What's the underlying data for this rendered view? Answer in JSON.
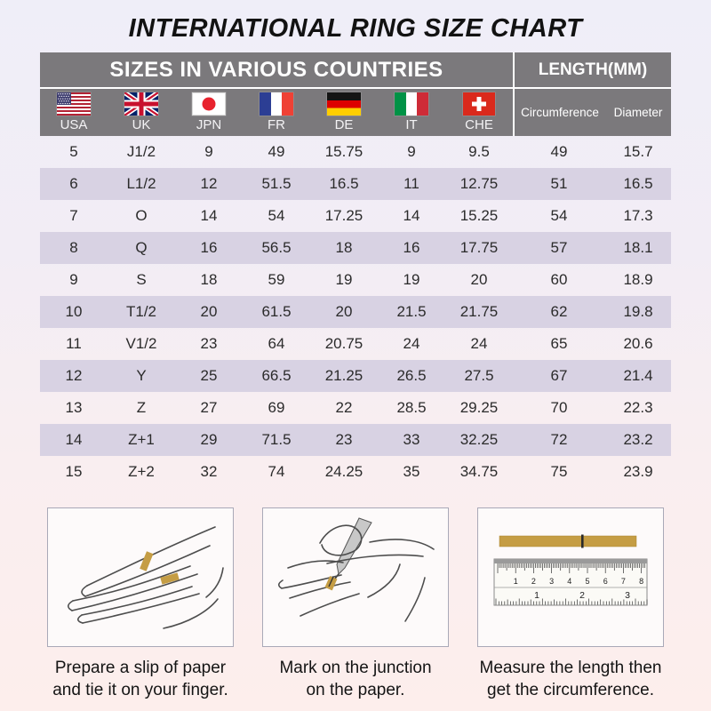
{
  "page_title": "INTERNATIONAL RING SIZE CHART",
  "table": {
    "section_left": "SIZES IN VARIOUS COUNTRIES",
    "section_right": "LENGTH(MM)",
    "countries": [
      {
        "code": "USA",
        "flag": "us"
      },
      {
        "code": "UK",
        "flag": "gb"
      },
      {
        "code": "JPN",
        "flag": "jp"
      },
      {
        "code": "FR",
        "flag": "fr"
      },
      {
        "code": "DE",
        "flag": "de"
      },
      {
        "code": "IT",
        "flag": "it"
      },
      {
        "code": "CHE",
        "flag": "ch"
      }
    ],
    "length_columns": [
      "Circumference",
      "Diameter"
    ]
  },
  "chart_data": {
    "type": "table",
    "title": "INTERNATIONAL RING SIZE CHART",
    "section_headers": [
      "SIZES IN VARIOUS COUNTRIES",
      "LENGTH(MM)"
    ],
    "columns": [
      "USA",
      "UK",
      "JPN",
      "FR",
      "DE",
      "IT",
      "CHE",
      "Circumference",
      "Diameter"
    ],
    "rows": [
      [
        "5",
        "J1/2",
        "9",
        "49",
        "15.75",
        "9",
        "9.5",
        "49",
        "15.7"
      ],
      [
        "6",
        "L1/2",
        "12",
        "51.5",
        "16.5",
        "11",
        "12.75",
        "51",
        "16.5"
      ],
      [
        "7",
        "O",
        "14",
        "54",
        "17.25",
        "14",
        "15.25",
        "54",
        "17.3"
      ],
      [
        "8",
        "Q",
        "16",
        "56.5",
        "18",
        "16",
        "17.75",
        "57",
        "18.1"
      ],
      [
        "9",
        "S",
        "18",
        "59",
        "19",
        "19",
        "20",
        "60",
        "18.9"
      ],
      [
        "10",
        "T1/2",
        "20",
        "61.5",
        "20",
        "21.5",
        "21.75",
        "62",
        "19.8"
      ],
      [
        "11",
        "V1/2",
        "23",
        "64",
        "20.75",
        "24",
        "24",
        "65",
        "20.6"
      ],
      [
        "12",
        "Y",
        "25",
        "66.5",
        "21.25",
        "26.5",
        "27.5",
        "67",
        "21.4"
      ],
      [
        "13",
        "Z",
        "27",
        "69",
        "22",
        "28.5",
        "29.25",
        "70",
        "22.3"
      ],
      [
        "14",
        "Z+1",
        "29",
        "71.5",
        "23",
        "33",
        "32.25",
        "72",
        "23.2"
      ],
      [
        "15",
        "Z+2",
        "32",
        "74",
        "24.25",
        "35",
        "34.75",
        "75",
        "23.9"
      ]
    ]
  },
  "instructions": [
    {
      "icon": "hand-with-paper-strip-icon",
      "line1": "Prepare a slip of paper",
      "line2": "and tie it on your finger."
    },
    {
      "icon": "pen-marking-paper-icon",
      "line1": "Mark on the junction",
      "line2": "on the paper."
    },
    {
      "icon": "ruler-measuring-strip-icon",
      "line1": "Measure the length then",
      "line2": "get the circumference."
    }
  ],
  "colors": {
    "header_gray": "#7b797c",
    "row_stripe": "#d8d2e3",
    "paper_strip_gold": "#c59d44",
    "background_top": "#efeef8",
    "background_bottom": "#fdeeec",
    "header_text": "#ffffff",
    "body_text": "#2b2b2b"
  }
}
